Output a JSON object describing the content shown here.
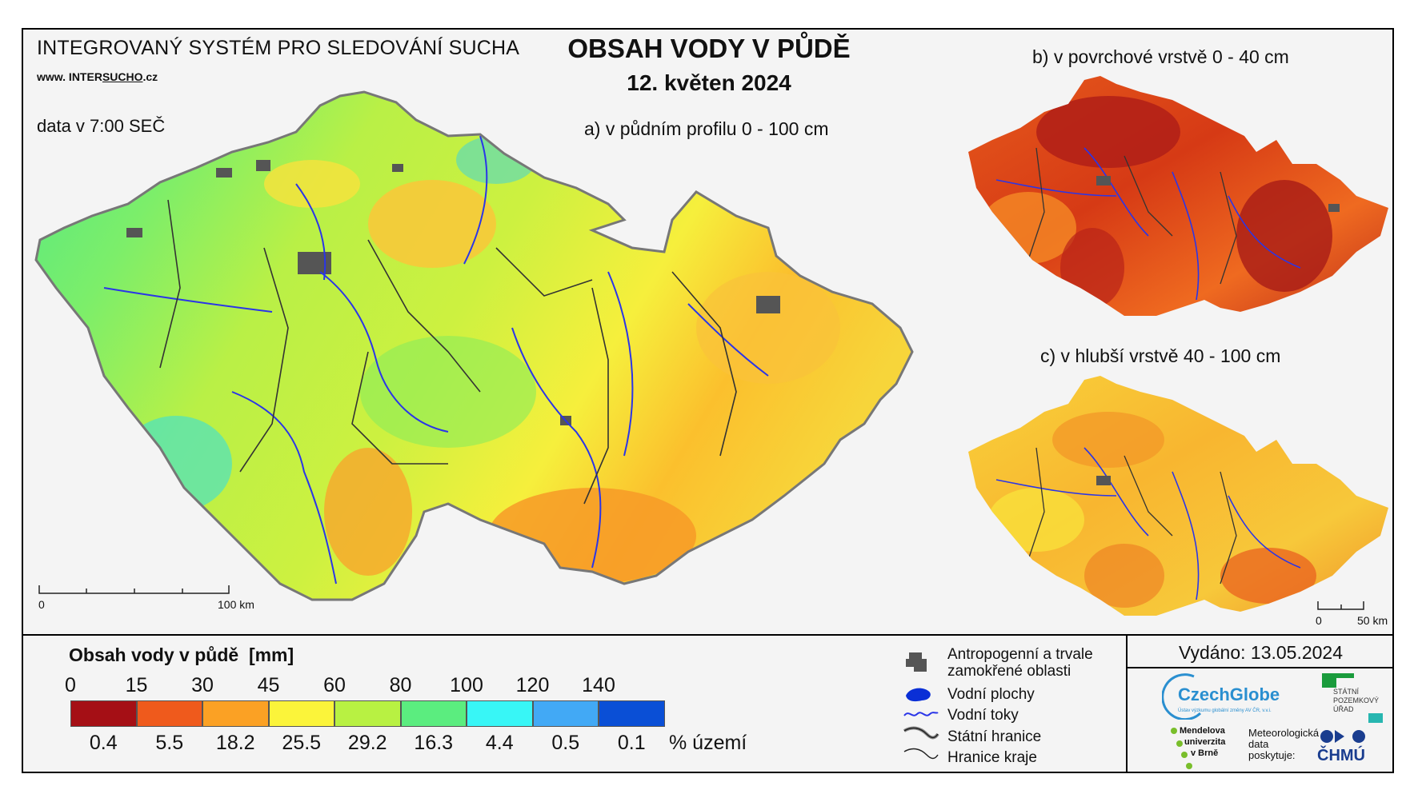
{
  "header": {
    "system_title": "INTEGROVANÝ SYSTÉM PRO SLEDOVÁNÍ SUCHA",
    "url_prefix": "www. INTER",
    "url_brand": "SUCHO",
    "url_suffix": ".cz",
    "data_time": "data v 7:00 SEČ"
  },
  "title": {
    "main": "OBSAH VODY V PŮDĚ",
    "date": "12. květen 2024"
  },
  "maps": {
    "a_label": "a) v půdním profilu 0 - 100 cm",
    "b_label": "b) v povrchové vrstvě 0 - 40 cm",
    "c_label": "c) v hlubší vrstvě 40 - 100 cm"
  },
  "scalebars": {
    "main_start": "0",
    "main_end": "100 km",
    "small_start": "0",
    "small_end": "50 km"
  },
  "legend": {
    "title": "Obsah vody v půdě",
    "unit": "[mm]",
    "ticks": [
      "0",
      "15",
      "30",
      "45",
      "60",
      "80",
      "100",
      "120",
      "140"
    ],
    "classes": [
      {
        "color": "#a50f15",
        "share": "0.4"
      },
      {
        "color": "#ef5a1c",
        "share": "5.5"
      },
      {
        "color": "#fba124",
        "share": "18.2"
      },
      {
        "color": "#fbf43a",
        "share": "25.5"
      },
      {
        "color": "#b8f142",
        "share": "29.2"
      },
      {
        "color": "#5bed7f",
        "share": "16.3"
      },
      {
        "color": "#38f6f6",
        "share": "4.4"
      },
      {
        "color": "#42a9f5",
        "share": "0.5"
      },
      {
        "color": "#0a4fd6",
        "share": "0.1"
      }
    ],
    "share_unit": "% území"
  },
  "map_legend": {
    "items": [
      {
        "label": "Antropogenní a trvale zamokřené oblasti",
        "icon": "urban-area-icon"
      },
      {
        "label": "Vodní plochy",
        "icon": "water-body-icon"
      },
      {
        "label": "Vodní toky",
        "icon": "river-icon"
      },
      {
        "label": "Státní hranice",
        "icon": "state-border-icon"
      },
      {
        "label": "Hranice kraje",
        "icon": "region-border-icon"
      }
    ]
  },
  "issued": "Vydáno: 13.05.2024",
  "logos": {
    "czechglobe": "CzechGlobe",
    "czechglobe_sub": "Ústav výzkumu globální změny AV ČR, v.v.i.",
    "spu_line1": "STÁTNÍ",
    "spu_line2": "POZEMKOVÝ",
    "spu_line3": "ÚŘAD",
    "mendel_line1": "Mendelova",
    "mendel_line2": "univerzita",
    "mendel_line3": "v Brně",
    "meteo_line1": "Meteorologická",
    "meteo_line2": "data",
    "meteo_line3": "poskytuje:",
    "chmu": "ČHMÚ"
  },
  "colors": {
    "frame_bg": "#f4f4f4",
    "river": "#2a35e8",
    "urban": "#555555"
  }
}
